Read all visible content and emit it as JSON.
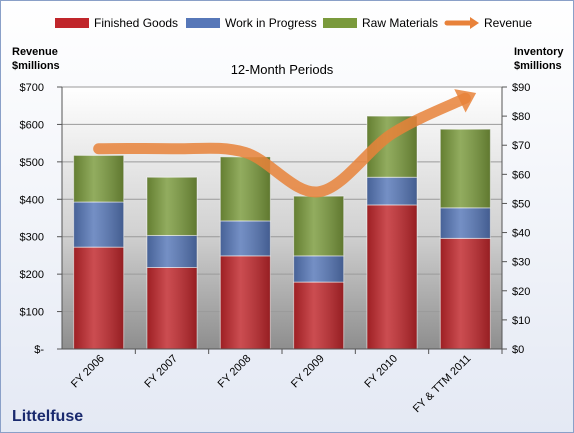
{
  "chart_data": {
    "type": "bar",
    "stacked": true,
    "title": "12-Month Periods",
    "company": "Littelfuse",
    "ylabel_left": [
      "Revenue",
      "$millions"
    ],
    "ylabel_right": [
      "Inventory",
      "$millions"
    ],
    "categories": [
      "FY 2006",
      "FY 2007",
      "FY 2008",
      "FY 2009",
      "FY 2010",
      "FY & TTM 2011"
    ],
    "ylim_left": [
      0,
      700
    ],
    "ylim_right": [
      0,
      90
    ],
    "left_ticks": [
      "$-",
      "$100",
      "$200",
      "$300",
      "$400",
      "$500",
      "$600",
      "$700"
    ],
    "right_ticks": [
      "$0",
      "$10",
      "$20",
      "$30",
      "$40",
      "$50",
      "$60",
      "$70",
      "$80",
      "$90"
    ],
    "series": [
      {
        "name": "Finished Goods",
        "axis": "right",
        "color": "#c0262b",
        "values": [
          35,
          28,
          32,
          23,
          49.5,
          38
        ]
      },
      {
        "name": "Work in Progress",
        "axis": "right",
        "color": "#5677b8",
        "values": [
          15.5,
          11,
          12,
          9,
          9.5,
          10.5
        ]
      },
      {
        "name": "Raw Materials",
        "axis": "right",
        "color": "#7a9a3c",
        "values": [
          16,
          20,
          22,
          20.5,
          21,
          27
        ]
      }
    ],
    "revenue": {
      "name": "Revenue",
      "axis": "left",
      "color": "#e8823a",
      "values": [
        535,
        535,
        525,
        420,
        575,
        670
      ]
    },
    "grid": true,
    "legend": "top"
  }
}
